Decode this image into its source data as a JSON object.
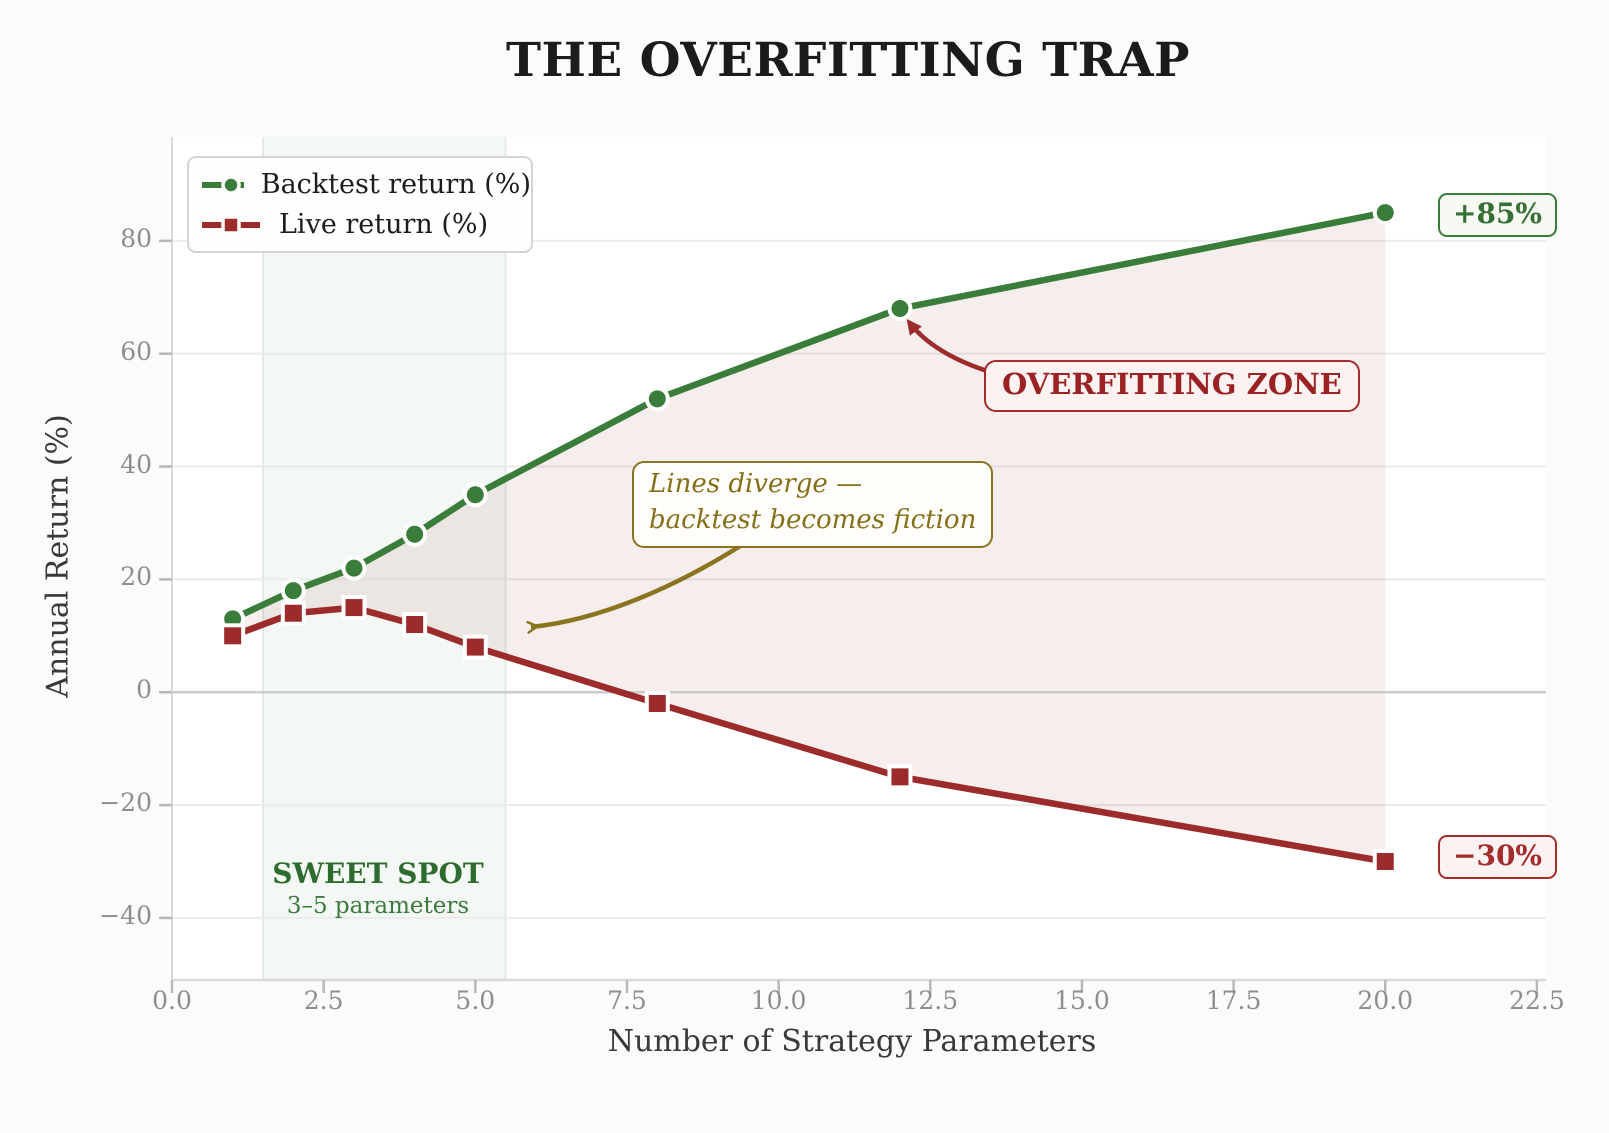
{
  "figure": {
    "title": "THE OVERFITTING TRAP"
  },
  "chart_data": {
    "type": "line",
    "title": "THE OVERFITTING TRAP",
    "xlabel": "Number of Strategy Parameters",
    "ylabel": "Annual Return (%)",
    "x": [
      1,
      2,
      3,
      4,
      5,
      8,
      12,
      20
    ],
    "series": [
      {
        "name": "Backtest return (%)",
        "marker": "circle",
        "color": "#3a7d3b",
        "values": [
          13,
          18,
          22,
          28,
          35,
          52,
          68,
          85
        ]
      },
      {
        "name": "Live return (%)",
        "marker": "square",
        "color": "#9c2b2b",
        "values": [
          10,
          14,
          15,
          12,
          8,
          -2,
          -15,
          -30
        ]
      }
    ],
    "xlim": [
      0,
      22.65
    ],
    "ylim": [
      -51,
      98.4
    ],
    "x_ticks": [
      0.0,
      2.5,
      5.0,
      7.5,
      10.0,
      12.5,
      15.0,
      17.5,
      20.0,
      22.5
    ],
    "y_ticks": [
      -40,
      -20,
      0,
      20,
      40,
      60,
      80
    ],
    "grid": true,
    "legend_position": "upper left",
    "band": {
      "x_from": 1.5,
      "x_to": 5.5
    },
    "annotations": {
      "overfitting_zone": "OVERFITTING ZONE",
      "diverge_line1": "Lines diverge —",
      "diverge_line2": "backtest becomes fiction",
      "backtest_end_label": "+85%",
      "live_end_label": "−30%",
      "sweet_spot_title": "SWEET SPOT",
      "sweet_spot_subtitle": "3–5 parameters"
    },
    "colors": {
      "backtest_green": "#3a7d3b",
      "live_red": "#9c2b2b",
      "olive_note": "#8a7420",
      "fill_between": "rgba(156,43,43,0.085)",
      "sweet_band": "rgba(60,125,60,0.055)",
      "sweet_band_edge": "rgba(60,125,60,0.12)",
      "gridline": "#ebebeb",
      "zero_line": "#cbcbcb",
      "spine": "#d9d9d9",
      "tick_mark": "#b8b8b8",
      "plot_bg": "#ffffff"
    }
  }
}
